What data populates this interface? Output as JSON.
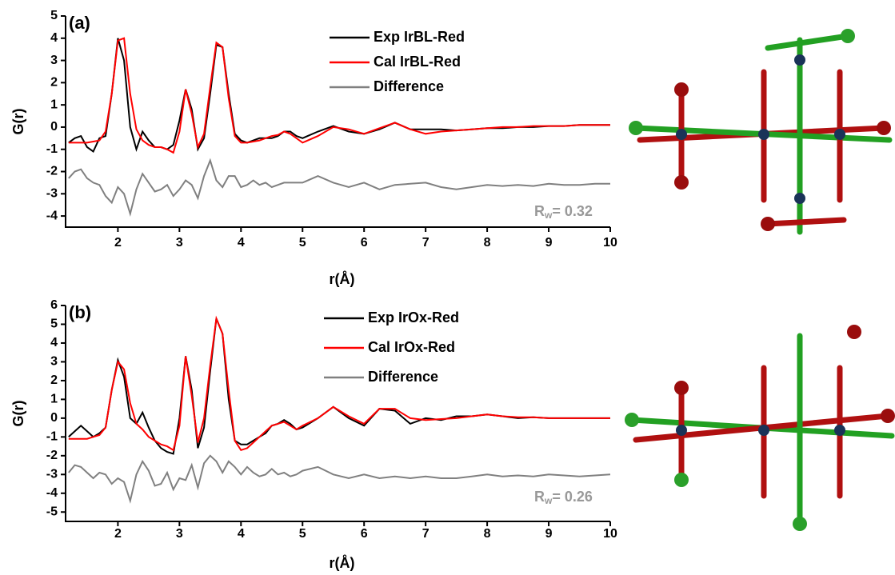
{
  "chart_data": [
    {
      "type": "line",
      "annotation": "(a)",
      "xlabel": "r(Å)",
      "ylabel": "G(r)",
      "rw": {
        "symbol": "R",
        "subscript": "w",
        "text": "= 0.32"
      },
      "x": [
        1.2,
        1.3,
        1.4,
        1.5,
        1.6,
        1.7,
        1.8,
        1.9,
        2.0,
        2.1,
        2.2,
        2.3,
        2.4,
        2.5,
        2.6,
        2.7,
        2.8,
        2.9,
        3.0,
        3.1,
        3.2,
        3.3,
        3.4,
        3.5,
        3.6,
        3.7,
        3.8,
        3.9,
        4.0,
        4.1,
        4.2,
        4.3,
        4.4,
        4.5,
        4.6,
        4.7,
        4.8,
        4.9,
        5.0,
        5.25,
        5.5,
        5.75,
        6.0,
        6.25,
        6.5,
        6.75,
        7.0,
        7.25,
        7.5,
        7.75,
        8.0,
        8.25,
        8.5,
        8.75,
        9.0,
        9.25,
        9.5,
        9.75,
        10.0
      ],
      "series": [
        {
          "name": "Exp IrBL-Red",
          "color": "#000000",
          "values": [
            -0.7,
            -0.5,
            -0.4,
            -0.9,
            -1.1,
            -0.5,
            -0.4,
            1.5,
            4.0,
            3.0,
            0.0,
            -1.0,
            -0.2,
            -0.6,
            -0.9,
            -0.9,
            -1.0,
            -0.8,
            0.3,
            1.7,
            0.8,
            -1.0,
            -0.5,
            1.5,
            3.7,
            3.6,
            1.5,
            -0.3,
            -0.6,
            -0.7,
            -0.6,
            -0.5,
            -0.5,
            -0.5,
            -0.4,
            -0.2,
            -0.2,
            -0.4,
            -0.5,
            -0.2,
            0.05,
            -0.2,
            -0.3,
            -0.1,
            0.2,
            -0.1,
            -0.1,
            -0.1,
            -0.15,
            -0.1,
            -0.05,
            -0.05,
            0.0,
            0.0,
            0.05,
            0.05,
            0.1,
            0.1,
            0.1
          ]
        },
        {
          "name": "Cal IrBL-Red",
          "color": "#ff0000",
          "values": [
            -0.7,
            -0.7,
            -0.7,
            -0.7,
            -0.65,
            -0.6,
            -0.2,
            1.5,
            3.9,
            4.0,
            1.5,
            -0.1,
            -0.6,
            -0.8,
            -0.9,
            -0.9,
            -1.0,
            -1.15,
            -0.2,
            1.7,
            0.6,
            -0.9,
            -0.3,
            1.8,
            3.8,
            3.6,
            1.3,
            -0.4,
            -0.7,
            -0.7,
            -0.65,
            -0.6,
            -0.5,
            -0.4,
            -0.35,
            -0.2,
            -0.3,
            -0.5,
            -0.7,
            -0.4,
            0.0,
            -0.1,
            -0.3,
            -0.05,
            0.2,
            -0.1,
            -0.3,
            -0.2,
            -0.15,
            -0.1,
            -0.05,
            0.0,
            0.0,
            0.05,
            0.05,
            0.05,
            0.1,
            0.1,
            0.1
          ]
        },
        {
          "name": "Difference",
          "color": "#808080",
          "values": [
            -2.3,
            -2.0,
            -1.9,
            -2.3,
            -2.5,
            -2.6,
            -3.1,
            -3.4,
            -2.7,
            -3.0,
            -3.9,
            -2.8,
            -2.1,
            -2.5,
            -2.9,
            -2.8,
            -2.6,
            -3.1,
            -2.8,
            -2.4,
            -2.6,
            -3.2,
            -2.2,
            -1.5,
            -2.4,
            -2.7,
            -2.2,
            -2.2,
            -2.7,
            -2.6,
            -2.4,
            -2.6,
            -2.5,
            -2.7,
            -2.6,
            -2.5,
            -2.5,
            -2.5,
            -2.5,
            -2.2,
            -2.5,
            -2.7,
            -2.5,
            -2.8,
            -2.6,
            -2.55,
            -2.5,
            -2.7,
            -2.8,
            -2.7,
            -2.6,
            -2.65,
            -2.6,
            -2.65,
            -2.55,
            -2.6,
            -2.6,
            -2.55,
            -2.55
          ]
        }
      ],
      "xlim": [
        1.15,
        10
      ],
      "xticks": [
        2,
        3,
        4,
        5,
        6,
        7,
        8,
        9,
        10
      ],
      "ylim": [
        -4.5,
        5
      ],
      "yticks": [
        -4,
        -3,
        -2,
        -1,
        0,
        1,
        2,
        3,
        4,
        5
      ]
    },
    {
      "type": "line",
      "annotation": "(b)",
      "xlabel": "r(Å)",
      "ylabel": "G(r)",
      "rw": {
        "symbol": "R",
        "subscript": "w",
        "text": "= 0.26"
      },
      "x": [
        1.2,
        1.3,
        1.4,
        1.5,
        1.6,
        1.7,
        1.8,
        1.9,
        2.0,
        2.1,
        2.2,
        2.3,
        2.4,
        2.5,
        2.6,
        2.7,
        2.8,
        2.9,
        3.0,
        3.1,
        3.2,
        3.3,
        3.4,
        3.5,
        3.6,
        3.7,
        3.8,
        3.9,
        4.0,
        4.1,
        4.2,
        4.3,
        4.4,
        4.5,
        4.6,
        4.7,
        4.8,
        4.9,
        5.0,
        5.25,
        5.5,
        5.75,
        6.0,
        6.25,
        6.5,
        6.75,
        7.0,
        7.25,
        7.5,
        7.75,
        8.0,
        8.25,
        8.5,
        8.75,
        9.0,
        9.25,
        9.5,
        9.75,
        10.0
      ],
      "series": [
        {
          "name": "Exp IrOx-Red",
          "color": "#000000",
          "values": [
            -1.0,
            -0.7,
            -0.4,
            -0.7,
            -1.0,
            -0.8,
            -0.5,
            1.5,
            3.1,
            2.2,
            0.0,
            -0.3,
            0.3,
            -0.5,
            -1.2,
            -1.6,
            -1.8,
            -1.9,
            0.0,
            3.3,
            1.5,
            -1.6,
            -0.5,
            2.5,
            5.3,
            4.5,
            1.0,
            -1.2,
            -1.4,
            -1.4,
            -1.2,
            -1.0,
            -0.8,
            -0.4,
            -0.3,
            -0.1,
            -0.3,
            -0.6,
            -0.5,
            0.0,
            0.6,
            0.0,
            -0.4,
            0.5,
            0.4,
            -0.3,
            0.0,
            -0.1,
            0.1,
            0.1,
            0.2,
            0.1,
            0.0,
            0.05,
            0.0,
            0.0,
            0.0,
            0.0,
            0.0
          ]
        },
        {
          "name": "Cal IrOx-Red",
          "color": "#ff0000",
          "values": [
            -1.1,
            -1.1,
            -1.1,
            -1.1,
            -1.0,
            -0.9,
            -0.5,
            1.5,
            3.0,
            2.6,
            0.8,
            -0.3,
            -0.6,
            -1.0,
            -1.2,
            -1.4,
            -1.5,
            -1.7,
            -0.4,
            3.3,
            1.2,
            -1.3,
            0.0,
            2.8,
            5.3,
            4.5,
            1.5,
            -1.2,
            -1.7,
            -1.6,
            -1.3,
            -1.0,
            -0.7,
            -0.4,
            -0.3,
            -0.2,
            -0.4,
            -0.6,
            -0.4,
            0.0,
            0.6,
            0.1,
            -0.3,
            0.5,
            0.5,
            0.0,
            -0.1,
            -0.05,
            0.0,
            0.1,
            0.2,
            0.1,
            0.05,
            0.05,
            0.0,
            0.0,
            0.0,
            0.0,
            0.0
          ]
        },
        {
          "name": "Difference",
          "color": "#808080",
          "values": [
            -2.9,
            -2.5,
            -2.6,
            -2.9,
            -3.2,
            -2.9,
            -3.0,
            -3.5,
            -3.2,
            -3.4,
            -4.4,
            -3.0,
            -2.3,
            -2.8,
            -3.6,
            -3.5,
            -2.9,
            -3.8,
            -3.2,
            -3.3,
            -2.5,
            -3.7,
            -2.4,
            -2.0,
            -2.3,
            -2.9,
            -2.3,
            -2.6,
            -3.0,
            -2.6,
            -2.9,
            -3.1,
            -3.0,
            -2.7,
            -3.0,
            -2.9,
            -3.1,
            -3.0,
            -2.8,
            -2.6,
            -3.0,
            -3.2,
            -3.0,
            -3.2,
            -3.1,
            -3.2,
            -3.1,
            -3.2,
            -3.2,
            -3.1,
            -3.0,
            -3.1,
            -3.05,
            -3.1,
            -3.0,
            -3.05,
            -3.1,
            -3.05,
            -3.0
          ]
        }
      ],
      "xlim": [
        1.15,
        10
      ],
      "xticks": [
        2,
        3,
        4,
        5,
        6,
        7,
        8,
        9,
        10
      ],
      "ylim": [
        -5.5,
        6
      ],
      "yticks": [
        -5,
        -4,
        -3,
        -2,
        -1,
        0,
        1,
        2,
        3,
        4,
        5,
        6
      ]
    }
  ]
}
